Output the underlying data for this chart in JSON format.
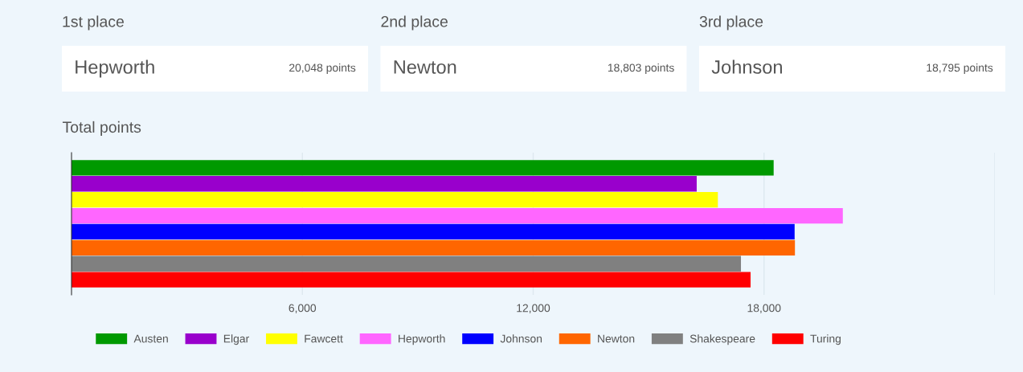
{
  "chart_data": [
    {
      "type": "other",
      "title": "1st place",
      "annotations": [
        "Hepworth",
        "20,048 points"
      ]
    },
    {
      "type": "other",
      "title": "2nd place",
      "annotations": [
        "Newton",
        "18,803 points"
      ]
    },
    {
      "type": "other",
      "title": "3rd place",
      "annotations": [
        "Johnson",
        "18,795 points"
      ]
    },
    {
      "type": "bar",
      "title": "Total points",
      "orientation": "horizontal",
      "categories": [
        null
      ],
      "series": [
        {
          "name": "Austen",
          "color": "#009900",
          "values": [
            18250
          ]
        },
        {
          "name": "Elgar",
          "color": "#9900cc",
          "values": [
            16250
          ]
        },
        {
          "name": "Fawcett",
          "color": "#ffff00",
          "values": [
            16800
          ]
        },
        {
          "name": "Hepworth",
          "color": "#ff66ff",
          "values": [
            20048
          ]
        },
        {
          "name": "Johnson",
          "color": "#0000ff",
          "values": [
            18795
          ]
        },
        {
          "name": "Newton",
          "color": "#ff6600",
          "values": [
            18803
          ]
        },
        {
          "name": "Shakespeare",
          "color": "#808080",
          "values": [
            17400
          ]
        },
        {
          "name": "Turing",
          "color": "#ff0000",
          "values": [
            17650
          ]
        }
      ],
      "xlim": [
        0,
        24000
      ],
      "xticks": [
        {
          "value": 6000,
          "label": "6,000"
        },
        {
          "value": 12000,
          "label": "12,000"
        },
        {
          "value": 18000,
          "label": "18,000"
        },
        {
          "value": 24000,
          "label": null
        }
      ],
      "grid": "x",
      "legend": "bottom",
      "tick_labels": "x"
    }
  ]
}
